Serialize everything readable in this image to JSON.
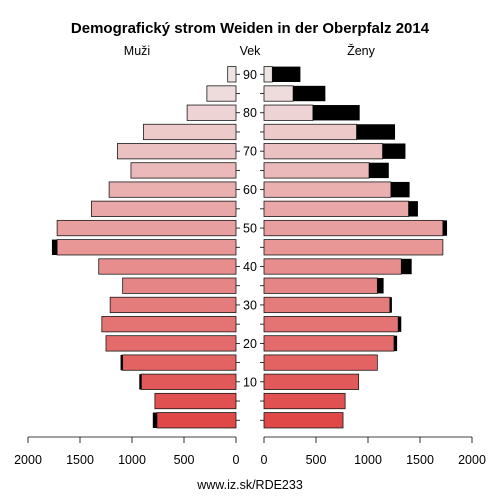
{
  "chart_data": {
    "type": "bar",
    "title": "Demografický strom Weiden in der Oberpfalz 2014",
    "left_label": "Muži",
    "center_label": "Vek",
    "right_label": "Ženy",
    "source": "www.iz.sk/RDE233",
    "age_ticks": [
      "90",
      "80",
      "70",
      "60",
      "50",
      "40",
      "30",
      "20",
      "10"
    ],
    "x_ticks": {
      "left": [
        "2000",
        "1500",
        "1000",
        "500",
        "0"
      ],
      "right": [
        "0",
        "500",
        "1000",
        "1500",
        "2000"
      ]
    },
    "xlim": [
      0,
      2000
    ],
    "age_groups": [
      "90+",
      "85-89",
      "80-84",
      "75-79",
      "70-74",
      "65-69",
      "60-64",
      "55-59",
      "50-54",
      "45-49",
      "40-44",
      "35-39",
      "30-34",
      "25-29",
      "20-24",
      "15-19",
      "10-14",
      "5-9",
      "0-4"
    ],
    "series": [
      {
        "side": "male",
        "values": [
          80,
          280,
          470,
          890,
          1140,
          1010,
          1220,
          1390,
          1720,
          1720,
          1320,
          1090,
          1210,
          1290,
          1250,
          1090,
          910,
          780,
          760
        ],
        "excess": [
          0,
          0,
          0,
          0,
          0,
          0,
          0,
          0,
          0,
          50,
          0,
          0,
          0,
          0,
          0,
          20,
          20,
          0,
          40
        ]
      },
      {
        "side": "female",
        "values": [
          80,
          280,
          470,
          890,
          1140,
          1010,
          1220,
          1390,
          1720,
          1720,
          1320,
          1090,
          1210,
          1290,
          1250,
          1090,
          910,
          780,
          760
        ],
        "excess": [
          270,
          310,
          450,
          370,
          220,
          190,
          180,
          90,
          40,
          0,
          100,
          60,
          20,
          30,
          30,
          0,
          0,
          0,
          0
        ]
      }
    ],
    "colors": {
      "excess": "#000000",
      "stroke": "#1a1a1a",
      "top": "#efe4e4",
      "bottom": "#e04848"
    }
  }
}
